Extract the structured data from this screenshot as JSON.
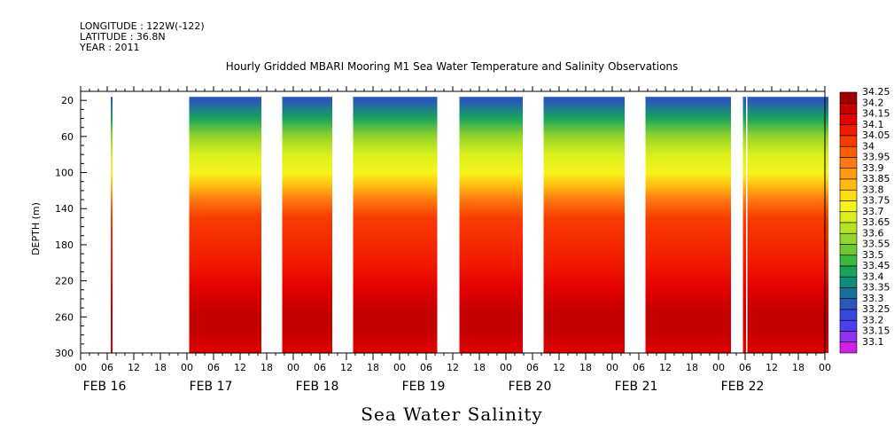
{
  "meta": {
    "longitude": "LONGITUDE : 122W(-122)",
    "latitude": "LATITUDE : 36.8N",
    "year": "YEAR : 2011"
  },
  "chart_data": {
    "type": "heatmap",
    "title": "Hourly Gridded MBARI Mooring M1 Sea Water Temperature and Salinity Observations",
    "xlabel": "Sea Water Salinity",
    "ylabel": "DEPTH (m)",
    "x_unit": "hours since FEB 16 00:00",
    "xlim": [
      0,
      168
    ],
    "ylim": [
      300,
      10
    ],
    "y_ticks": [
      20,
      60,
      100,
      140,
      180,
      220,
      260,
      300
    ],
    "x_tick_labels": [
      "00",
      "06",
      "12",
      "18",
      "00",
      "06",
      "12",
      "18",
      "00",
      "06",
      "12",
      "18",
      "00",
      "06",
      "12",
      "18",
      "00",
      "06",
      "12",
      "18",
      "00",
      "06",
      "12",
      "18",
      "00",
      "06",
      "12",
      "18",
      "00"
    ],
    "day_labels": [
      "FEB 16",
      "FEB 17",
      "FEB 18",
      "FEB 19",
      "FEB 20",
      "FEB 21",
      "FEB 22"
    ],
    "colorbar": {
      "labels": [
        "34.25",
        "34.2",
        "34.15",
        "34.1",
        "34.05",
        "34",
        "33.95",
        "33.9",
        "33.85",
        "33.8",
        "33.75",
        "33.7",
        "33.65",
        "33.6",
        "33.55",
        "33.5",
        "33.45",
        "33.4",
        "33.35",
        "33.3",
        "33.25",
        "33.2",
        "33.15",
        "33.1"
      ],
      "colors": [
        "#a00000",
        "#c40000",
        "#e20000",
        "#f21a00",
        "#f83c00",
        "#fb5c0a",
        "#fd7a12",
        "#ff9a12",
        "#ffbc10",
        "#ffdc10",
        "#f8f41a",
        "#d8ef1e",
        "#b6e224",
        "#94d52a",
        "#6cc830",
        "#3cb83c",
        "#18a45a",
        "#108c7c",
        "#187098",
        "#2858bc",
        "#3848dc",
        "#4a3ef0",
        "#9030f0",
        "#d020e8"
      ]
    },
    "data_segments_hours": [
      [
        6.8,
        7.2
      ],
      [
        24.5,
        40.8
      ],
      [
        45.5,
        56.8
      ],
      [
        61.5,
        80.5
      ],
      [
        85.5,
        99.8
      ],
      [
        104.5,
        122.8
      ],
      [
        127.5,
        146.8
      ],
      [
        149.5,
        150.2
      ],
      [
        150.5,
        168.8
      ]
    ],
    "salinity_profile": [
      {
        "depth": 20,
        "value": 33.3
      },
      {
        "depth": 40,
        "value": 33.45
      },
      {
        "depth": 60,
        "value": 33.6
      },
      {
        "depth": 80,
        "value": 33.68
      },
      {
        "depth": 100,
        "value": 33.75
      },
      {
        "depth": 115,
        "value": 33.85
      },
      {
        "depth": 130,
        "value": 33.95
      },
      {
        "depth": 150,
        "value": 34.05
      },
      {
        "depth": 200,
        "value": 34.1
      },
      {
        "depth": 230,
        "value": 34.15
      },
      {
        "depth": 255,
        "value": 34.2
      },
      {
        "depth": 275,
        "value": 34.2
      },
      {
        "depth": 300,
        "value": 34.15
      }
    ]
  }
}
